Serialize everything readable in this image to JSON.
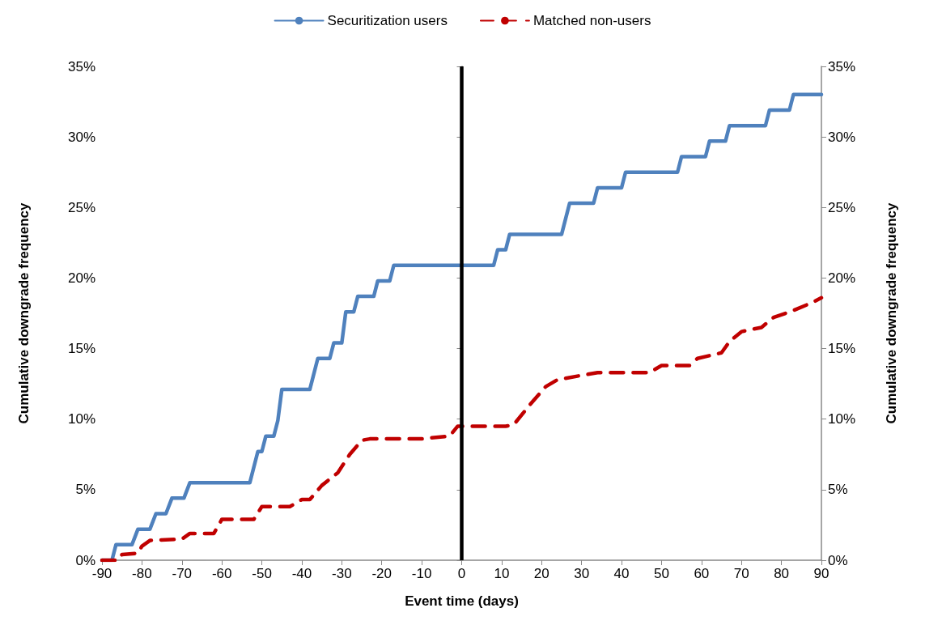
{
  "chart_data": {
    "type": "line",
    "xlabel": "Event time (days)",
    "ylabel": "Cumulative downgrade frequency",
    "y2label": "Cumulative downgrade frequency",
    "xlim": [
      -90,
      90
    ],
    "xticks": [
      -90,
      -80,
      -70,
      -60,
      -50,
      -40,
      -30,
      -20,
      -10,
      0,
      10,
      20,
      30,
      40,
      50,
      60,
      70,
      80,
      90
    ],
    "ylim": [
      0,
      35
    ],
    "yticks": [
      {
        "value": 0,
        "label": "0%"
      },
      {
        "value": 5,
        "label": "5%"
      },
      {
        "value": 10,
        "label": "10%"
      },
      {
        "value": 15,
        "label": "15%"
      },
      {
        "value": 20,
        "label": "20%"
      },
      {
        "value": 25,
        "label": "25%"
      },
      {
        "value": 30,
        "label": "30%"
      },
      {
        "value": 35,
        "label": "35%"
      }
    ],
    "y2lim": [
      0,
      35
    ],
    "y2ticks": [
      {
        "value": 0,
        "label": "0%"
      },
      {
        "value": 5,
        "label": "5%"
      },
      {
        "value": 10,
        "label": "10%"
      },
      {
        "value": 15,
        "label": "15%"
      },
      {
        "value": 20,
        "label": "20%"
      },
      {
        "value": 25,
        "label": "25%"
      },
      {
        "value": 30,
        "label": "30%"
      },
      {
        "value": 35,
        "label": "35%"
      }
    ],
    "grid": false,
    "legend": "top",
    "marker": "none",
    "ref_lines": [
      {
        "axis": "x",
        "value": 0,
        "color": "#000000",
        "line_style": "solid"
      }
    ],
    "series": [
      {
        "name": "Securitization users",
        "color": "#4f81bd",
        "line_style": "solid",
        "x": [
          -90,
          -87.5,
          -86.5,
          -82.5,
          -81,
          -78,
          -76.5,
          -74,
          -72.5,
          -69.5,
          -68,
          -53,
          -51,
          -50,
          -49,
          -47,
          -46,
          -45,
          -38,
          -36,
          -33,
          -32,
          -30,
          -29,
          -27,
          -26,
          -22,
          -21,
          -18,
          -17,
          8,
          9,
          11,
          12,
          25,
          27,
          33,
          34,
          40,
          41,
          54,
          55,
          61,
          62,
          66,
          67,
          76,
          77,
          82,
          83,
          90
        ],
        "values": [
          0,
          0,
          1.1,
          1.1,
          2.2,
          2.2,
          3.3,
          3.3,
          4.4,
          4.4,
          5.5,
          5.5,
          7.7,
          7.7,
          8.8,
          8.8,
          9.9,
          12.1,
          12.1,
          14.3,
          14.3,
          15.4,
          15.4,
          17.6,
          17.6,
          18.7,
          18.7,
          19.8,
          19.8,
          20.9,
          20.9,
          22,
          22,
          23.1,
          23.1,
          25.3,
          25.3,
          26.4,
          26.4,
          27.5,
          27.5,
          28.6,
          28.6,
          29.7,
          29.7,
          30.8,
          30.8,
          31.9,
          31.9,
          33,
          33
        ]
      },
      {
        "name": "Matched non-users",
        "color": "#c00000",
        "line_style": "dashed",
        "x": [
          -90,
          -86,
          -85,
          -81,
          -80,
          -78,
          -70,
          -68,
          -62,
          -60,
          -52,
          -50,
          -43,
          -40,
          -38,
          -35,
          -31,
          -28,
          -25,
          -23,
          -10,
          -3,
          -1,
          11,
          13,
          17,
          21,
          24,
          34,
          47,
          50,
          57,
          59,
          65,
          67,
          70,
          75,
          78,
          83,
          88,
          90
        ],
        "values": [
          0,
          0,
          0.4,
          0.5,
          1,
          1.4,
          1.5,
          1.9,
          1.9,
          2.9,
          2.9,
          3.8,
          3.8,
          4.3,
          4.3,
          5.3,
          6.2,
          7.5,
          8.5,
          8.6,
          8.6,
          8.8,
          9.5,
          9.5,
          9.6,
          11,
          12.3,
          12.8,
          13.3,
          13.3,
          13.8,
          13.8,
          14.3,
          14.7,
          15.5,
          16.2,
          16.5,
          17.2,
          17.7,
          18.3,
          18.6
        ]
      }
    ]
  }
}
